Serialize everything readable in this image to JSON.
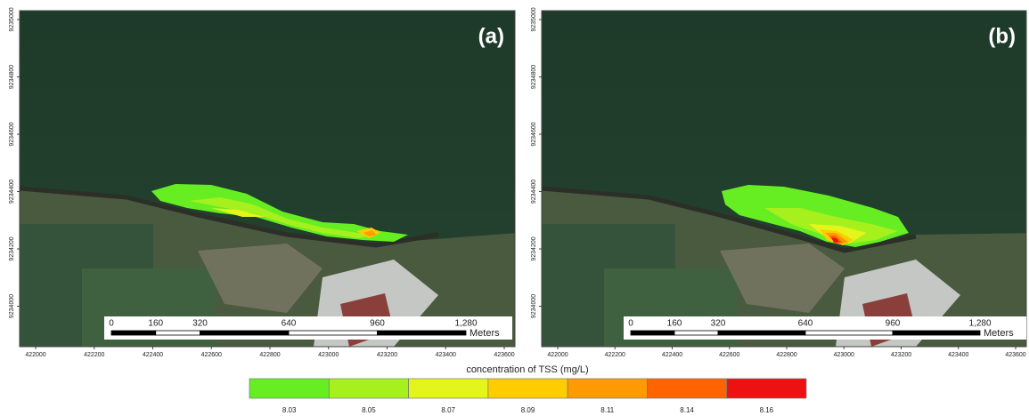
{
  "panels": [
    {
      "label": "(a)",
      "y_ticks": [
        9235000,
        9234800,
        9234600,
        9234400,
        9234200,
        9234000
      ],
      "x_ticks": [
        422000,
        422200,
        422400,
        422600,
        422800,
        423000,
        423200,
        423400,
        423600
      ],
      "scale_bar": {
        "ticks": [
          0,
          160,
          320,
          640,
          960,
          {
            "value": 1280,
            "label": "1,280"
          }
        ],
        "unit": "Meters"
      }
    },
    {
      "label": "(b)",
      "y_ticks": [
        9235000,
        9234800,
        9234600,
        9234400,
        9234200,
        9234000
      ],
      "x_ticks": [
        422000,
        422200,
        422400,
        422600,
        422800,
        423000,
        423200,
        423400,
        423600
      ],
      "scale_bar": {
        "ticks": [
          0,
          160,
          320,
          640,
          960,
          {
            "value": 1280,
            "label": "1,280"
          }
        ],
        "unit": "Meters"
      }
    }
  ],
  "legend": {
    "title": "concentration of TSS (mg/L)",
    "items": [
      {
        "label": 8.03,
        "color": "#66ee22"
      },
      {
        "label": 8.05,
        "color": "#a6f01e"
      },
      {
        "label": 8.07,
        "color": "#e4f51c"
      },
      {
        "label": 8.09,
        "color": "#ffcc00"
      },
      {
        "label": 8.11,
        "color": "#ff9a00"
      },
      {
        "label": 8.14,
        "color": "#ff6400"
      },
      {
        "label": 8.16,
        "color": "#ee1111"
      }
    ]
  }
}
